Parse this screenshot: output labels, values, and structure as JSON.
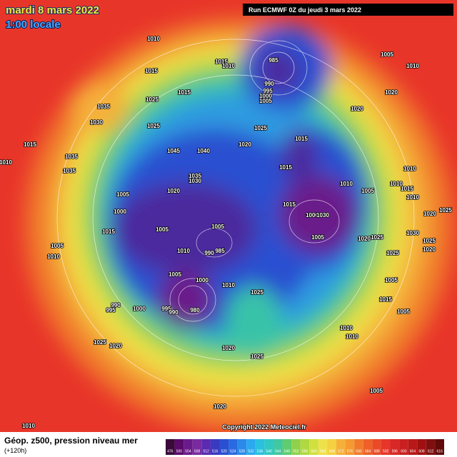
{
  "header": {
    "date": "mardi 8 mars 2022",
    "time": "1:00 locale",
    "run": "Run ECMWF 0Z du jeudi 3 mars 2022"
  },
  "footer": {
    "title": "Géop. z500, pression niveau mer",
    "lead": "(+120h)",
    "copyright": "Copyright 2022 Meteociel.fr"
  },
  "colorbar": {
    "labels": [
      476,
      500,
      504,
      508,
      512,
      516,
      520,
      524,
      528,
      532,
      536,
      540,
      544,
      548,
      552,
      556,
      560,
      564,
      568,
      572,
      576,
      580,
      584,
      588,
      592,
      596,
      600,
      604,
      608,
      612,
      616
    ]
  },
  "isobars": [
    "1010",
    "1015",
    "1025",
    "1035",
    "1030",
    "1025",
    "1015",
    "1015",
    "1010",
    "985",
    "990",
    "995",
    "1000",
    "1005",
    "1005",
    "1010",
    "1020",
    "1020",
    "1025",
    "1020",
    "1015",
    "1015",
    "1045",
    "1040",
    "1015",
    "1035",
    "1035",
    "1010",
    "1035",
    "1030",
    "1020",
    "1005",
    "1000",
    "1015",
    "1005",
    "1005",
    "985",
    "990",
    "1010",
    "1005",
    "1000",
    "1010",
    "1015",
    "1000",
    "1030",
    "1005",
    "1010",
    "1005",
    "1020",
    "1025",
    "1010",
    "1010",
    "1015",
    "1010",
    "1020",
    "1025",
    "1030",
    "1025",
    "1020",
    "1025",
    "1005",
    "1015",
    "1005",
    "1010",
    "1010",
    "1005",
    "1025",
    "1025",
    "1020",
    "1000",
    "995",
    "990",
    "995",
    "990",
    "980",
    "1025",
    "1020",
    "1005",
    "1010",
    "1020",
    "1010"
  ]
}
